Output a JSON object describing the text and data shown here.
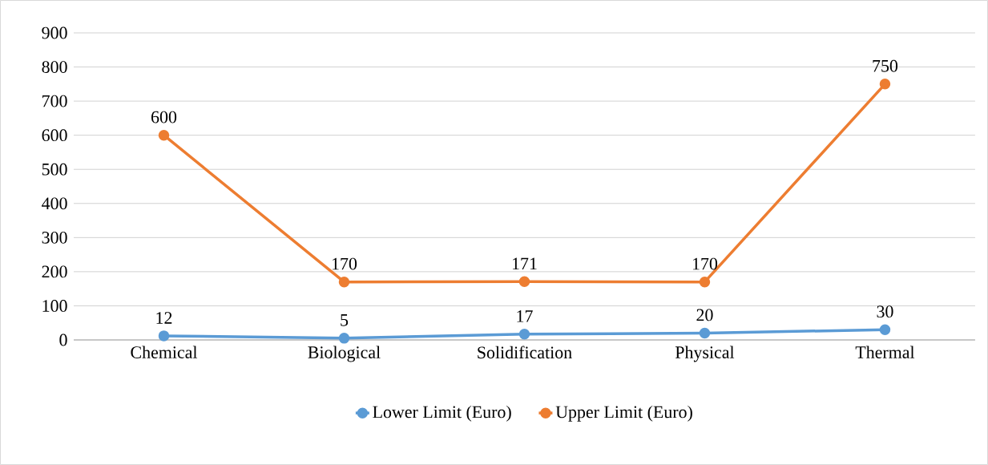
{
  "chart_data": {
    "type": "line",
    "categories": [
      "Chemical",
      "Biological",
      "Solidification",
      "Physical",
      "Thermal"
    ],
    "series": [
      {
        "name": "Lower Limit (Euro)",
        "color": "#5b9bd5",
        "values": [
          12,
          5,
          17,
          20,
          30
        ]
      },
      {
        "name": "Upper Limit (Euro)",
        "color": "#ed7d31",
        "values": [
          600,
          170,
          171,
          170,
          750
        ]
      }
    ],
    "ylim": [
      0,
      900
    ],
    "yticks": [
      0,
      100,
      200,
      300,
      400,
      500,
      600,
      700,
      800,
      900
    ],
    "grid": "y",
    "legend": "bottom",
    "marker": "circle",
    "line_style": "solid",
    "data_labels": true
  }
}
